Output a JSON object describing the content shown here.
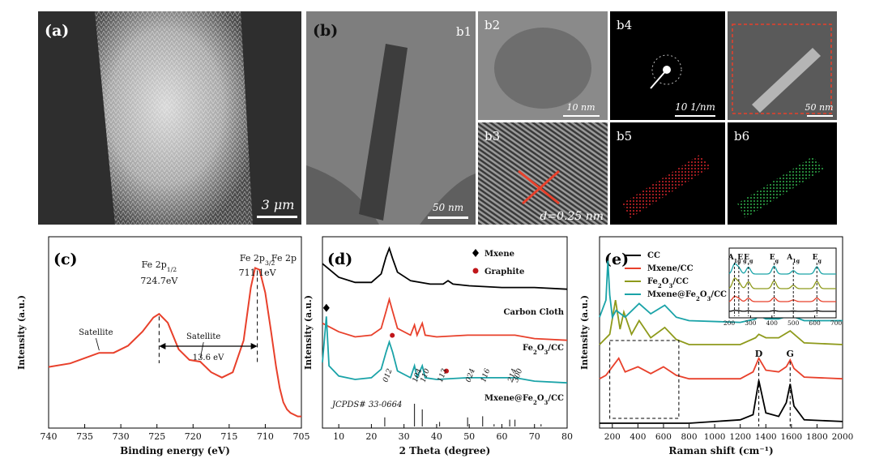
{
  "images": {
    "a": {
      "label": "(a)",
      "scale": "3 μm"
    },
    "b": {
      "label": "(b)"
    },
    "b1": {
      "label": "b1",
      "scale": "50 nm"
    },
    "b2": {
      "label": "b2",
      "scale": "10 nm"
    },
    "b3": {
      "label": "b3",
      "d_spacing": "d=0.25 nm"
    },
    "b4": {
      "label": "b4",
      "scale": "10  1/nm"
    },
    "b4b": {
      "scale": "50 nm"
    },
    "b5": {
      "label": "b5"
    },
    "b6": {
      "label": "b6"
    }
  },
  "colors": {
    "red": "#e8402b",
    "black": "#000000",
    "teal": "#1aa3a8",
    "olive": "#8e9a1b",
    "dark_red": "#c0161a",
    "map_red": "#d0242a",
    "map_green": "#2fae4a"
  },
  "chart_data": [
    {
      "panel": "(c)",
      "type": "line",
      "title": "",
      "xlabel": "Binding energy (eV)",
      "ylabel": "Intensity (a.u.)",
      "xlim": [
        740,
        705
      ],
      "x_ticks": [
        "740",
        "735",
        "730",
        "725",
        "720",
        "715",
        "710",
        "705"
      ],
      "series": [
        {
          "color": "#e8402b",
          "x": [
            740,
            737,
            735,
            733,
            731,
            729,
            727,
            725.5,
            724.7,
            723.5,
            722,
            720.5,
            719,
            717.5,
            716,
            714.5,
            713,
            712,
            711.4,
            710.8,
            710,
            709.2,
            708.5,
            708,
            707.5,
            707,
            706.5,
            706,
            705.5,
            705
          ],
          "y": [
            0.3,
            0.32,
            0.35,
            0.38,
            0.38,
            0.42,
            0.5,
            0.58,
            0.6,
            0.55,
            0.4,
            0.34,
            0.33,
            0.27,
            0.24,
            0.27,
            0.45,
            0.75,
            0.86,
            0.85,
            0.72,
            0.5,
            0.3,
            0.18,
            0.1,
            0.06,
            0.04,
            0.03,
            0.02,
            0.02
          ]
        }
      ],
      "annotations": [
        {
          "text": "Satellite",
          "x": 733,
          "y": 0.38
        },
        {
          "text": "Fe 2p1/2",
          "sub": "1/2",
          "value": "724.7eV",
          "x": 724.7
        },
        {
          "text": "Satellite",
          "x": 719,
          "y": 0.33
        },
        {
          "text": "Fe 2p3/2",
          "sub": "3/2",
          "value": "711.1eV",
          "x": 711.1
        },
        {
          "text": "Fe 2p"
        },
        {
          "text": "13.6 eV"
        }
      ]
    },
    {
      "panel": "(d)",
      "type": "line",
      "title": "",
      "xlabel": "2 Theta (degree)",
      "ylabel": "Intensity (a.u.)",
      "xlim": [
        5,
        80
      ],
      "x_ticks": [
        "10",
        "20",
        "30",
        "40",
        "50",
        "60",
        "70",
        "80"
      ],
      "legend": [
        "Mxene",
        "Graphite"
      ],
      "series": [
        {
          "name": "Carbon Cloth",
          "color": "#000000",
          "x": [
            5,
            10,
            15,
            20,
            23,
            24.5,
            25.5,
            26.5,
            28,
            32,
            38,
            42,
            43.5,
            45,
            50,
            60,
            70,
            80
          ],
          "y": [
            0.88,
            0.8,
            0.77,
            0.77,
            0.82,
            0.92,
            0.97,
            0.91,
            0.83,
            0.78,
            0.76,
            0.76,
            0.78,
            0.76,
            0.75,
            0.74,
            0.74,
            0.73
          ]
        },
        {
          "name": "Fe2O3/CC",
          "color": "#e8402b",
          "x": [
            5,
            10,
            15,
            20,
            23,
            24.5,
            25.5,
            26.5,
            28,
            32,
            33.2,
            34,
            35.6,
            36.5,
            40,
            49.5,
            54,
            62.5,
            64,
            70,
            80
          ],
          "y": [
            0.53,
            0.48,
            0.45,
            0.46,
            0.5,
            0.6,
            0.67,
            0.6,
            0.5,
            0.46,
            0.52,
            0.46,
            0.53,
            0.46,
            0.45,
            0.46,
            0.46,
            0.46,
            0.46,
            0.44,
            0.43
          ]
        },
        {
          "name": "Mxene@Fe2O3/CC",
          "color": "#1aa3a8",
          "x": [
            5,
            6.2,
            7,
            10,
            15,
            20,
            23,
            24.5,
            25.5,
            26.5,
            28,
            32,
            33.2,
            34,
            35.6,
            36.5,
            40,
            49.5,
            54,
            62.5,
            64,
            70,
            80
          ],
          "y": [
            0.3,
            0.57,
            0.28,
            0.22,
            0.2,
            0.21,
            0.26,
            0.36,
            0.42,
            0.36,
            0.25,
            0.21,
            0.28,
            0.21,
            0.28,
            0.21,
            0.2,
            0.21,
            0.21,
            0.21,
            0.21,
            0.19,
            0.18
          ]
        }
      ],
      "reference_label": "JCPDS# 33-0664",
      "reference_lines": [
        {
          "x": 24.1,
          "h": 0.4
        },
        {
          "x": 33.2,
          "h": 1.0
        },
        {
          "x": 35.6,
          "h": 0.75
        },
        {
          "x": 40.9,
          "h": 0.2
        },
        {
          "x": 49.5,
          "h": 0.4
        },
        {
          "x": 54.1,
          "h": 0.45
        },
        {
          "x": 57.6,
          "h": 0.1
        },
        {
          "x": 62.4,
          "h": 0.3
        },
        {
          "x": 64.0,
          "h": 0.3
        },
        {
          "x": 72,
          "h": 0.1
        }
      ],
      "hkl_labels": [
        {
          "text": "012",
          "x": 24.1
        },
        {
          "text": "104",
          "x": 33.2
        },
        {
          "text": "110",
          "x": 35.6
        },
        {
          "text": "113",
          "x": 40.9
        },
        {
          "text": "024",
          "x": 49.5
        },
        {
          "text": "116",
          "x": 54.1
        },
        {
          "text": "214",
          "x": 62.4
        },
        {
          "text": "300",
          "x": 64.0
        }
      ]
    },
    {
      "panel": "(e)",
      "type": "line",
      "title": "",
      "xlabel": "Raman shift (cm⁻¹)",
      "ylabel": "Intensity (a.u.)",
      "xlim": [
        100,
        2000
      ],
      "x_ticks": [
        "200",
        "400",
        "600",
        "800",
        "1000",
        "1200",
        "1400",
        "1600",
        "1800",
        "2000"
      ],
      "series": [
        {
          "name": "CC",
          "color": "#000000",
          "x": [
            100,
            800,
            1200,
            1300,
            1345,
            1400,
            1500,
            1560,
            1590,
            1620,
            1700,
            2000
          ],
          "y": [
            0.0,
            0.0,
            0.02,
            0.05,
            0.25,
            0.06,
            0.04,
            0.12,
            0.23,
            0.1,
            0.02,
            0.01
          ]
        },
        {
          "name": "Mxene/CC",
          "color": "#e8402b",
          "x": [
            100,
            150,
            200,
            250,
            300,
            400,
            500,
            600,
            700,
            800,
            1200,
            1300,
            1345,
            1400,
            1500,
            1560,
            1590,
            1620,
            1700,
            2000
          ],
          "y": [
            0.26,
            0.28,
            0.33,
            0.38,
            0.3,
            0.33,
            0.29,
            0.33,
            0.28,
            0.26,
            0.26,
            0.3,
            0.38,
            0.31,
            0.3,
            0.33,
            0.37,
            0.32,
            0.27,
            0.26
          ]
        },
        {
          "name": "Fe2O3/CC",
          "color": "#8e9a1b",
          "x": [
            100,
            180,
            225,
            260,
            290,
            350,
            410,
            500,
            610,
            700,
            800,
            1200,
            1320,
            1345,
            1400,
            1500,
            1590,
            1700,
            2000
          ],
          "y": [
            0.46,
            0.52,
            0.72,
            0.55,
            0.65,
            0.52,
            0.6,
            0.5,
            0.56,
            0.49,
            0.46,
            0.46,
            0.5,
            0.52,
            0.5,
            0.5,
            0.54,
            0.47,
            0.46
          ]
        },
        {
          "name": "Mxene@Fe2O3/CC",
          "color": "#1aa3a8",
          "x": [
            100,
            150,
            165,
            180,
            200,
            230,
            300,
            410,
            500,
            610,
            700,
            800,
            1200,
            1320,
            1345,
            1400,
            1500,
            1590,
            1700,
            2000
          ],
          "y": [
            0.62,
            0.72,
            0.95,
            0.75,
            0.62,
            0.66,
            0.62,
            0.7,
            0.64,
            0.69,
            0.62,
            0.6,
            0.59,
            0.61,
            0.63,
            0.61,
            0.61,
            0.63,
            0.6,
            0.6
          ]
        }
      ],
      "peak_labels": [
        "D",
        "G"
      ],
      "inset": {
        "xlim": [
          200,
          700
        ],
        "x_ticks": [
          "200",
          "300",
          "400",
          "500",
          "600",
          "700"
        ],
        "peaks": [
          {
            "text": "A1g",
            "main": "A",
            "sub": "1g",
            "x": 225
          },
          {
            "text": "Eg",
            "main": "E",
            "sub": "g",
            "x": 245
          },
          {
            "text": "Eg",
            "main": "E",
            "sub": "g",
            "x": 290
          },
          {
            "text": "Eg",
            "main": "E",
            "sub": "g",
            "x": 410
          },
          {
            "text": "A1g",
            "main": "A",
            "sub": "1g",
            "x": 500
          },
          {
            "text": "Eg",
            "main": "E",
            "sub": "g",
            "x": 610
          }
        ]
      }
    }
  ]
}
